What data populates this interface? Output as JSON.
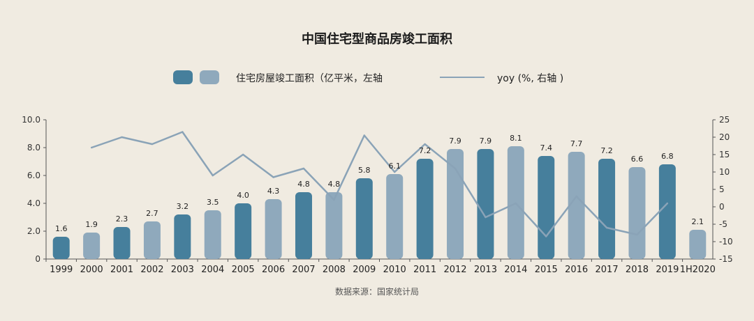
{
  "chart_data": {
    "type": "bar",
    "title": "中国住宅型商品房竣工面积",
    "source": "数据来源：国家统计局",
    "categories": [
      "1999",
      "2000",
      "2001",
      "2002",
      "2003",
      "2004",
      "2005",
      "2006",
      "2007",
      "2008",
      "2009",
      "2010",
      "2011",
      "2012",
      "2013",
      "2014",
      "2015",
      "2016",
      "2017",
      "2018",
      "2019",
      "1H2020"
    ],
    "series": [
      {
        "name": "住宅房屋竣工面积（亿平米，左轴",
        "axis": "left",
        "values": [
          1.6,
          1.9,
          2.3,
          2.7,
          3.2,
          3.5,
          4.0,
          4.3,
          4.8,
          4.8,
          5.8,
          6.1,
          7.2,
          7.9,
          7.9,
          8.1,
          7.4,
          7.7,
          7.2,
          6.6,
          6.8,
          2.1
        ],
        "data_labels": [
          "1.6",
          "1.9",
          "2.3",
          "2.7",
          "3.2",
          "3.5",
          "4.0",
          "4.3",
          "4.8",
          "4.8",
          "5.8",
          "6.1",
          "7.2",
          "7.9",
          "7.9",
          "8.1",
          "7.4",
          "7.7",
          "7.2",
          "6.6",
          "6.8",
          "2.1"
        ],
        "colors": [
          "#467f9c",
          "#8fa9bc"
        ]
      },
      {
        "name": "yoy (%, 右轴 )",
        "axis": "right",
        "type": "line",
        "color": "#8aa3b7",
        "values": [
          null,
          17,
          20,
          18,
          21.5,
          9,
          15,
          8.5,
          11,
          2,
          20.5,
          10,
          18,
          11,
          -3,
          1,
          -8.5,
          3,
          -6,
          -8,
          1,
          null
        ]
      }
    ],
    "ylim_left": [
      0,
      10
    ],
    "yticks_left": [
      "0",
      "2.0",
      "4.0",
      "6.0",
      "8.0",
      "10.0"
    ],
    "ylim_right": [
      -15,
      25
    ],
    "yticks_right": [
      "-15",
      "-10",
      "-5",
      "0",
      "5",
      "10",
      "15",
      "20",
      "25"
    ],
    "legend_position": "top",
    "grid": false
  }
}
